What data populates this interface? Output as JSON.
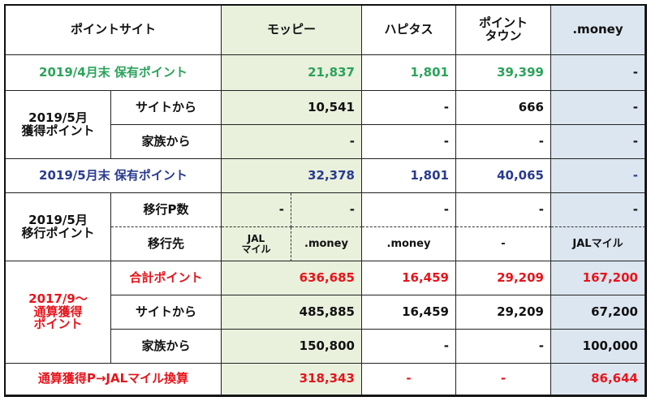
{
  "header": {
    "site": "ポイントサイト",
    "moppy": "モッピー",
    "hapitas": "ハピタス",
    "pointtown": "ポイント\nタウン",
    "money": ".money"
  },
  "apr": {
    "label": "2019/4月末 保有ポイント",
    "moppy": "21,837",
    "hapitas": "1,801",
    "pointtown": "39,399",
    "money": "-"
  },
  "may_earned": {
    "label": "2019/5月\n獲得ポイント",
    "site_label": "サイトから",
    "site_moppy": "10,541",
    "site_hapitas": "-",
    "site_pointtown": "666",
    "site_money": "-",
    "family_label": "家族から",
    "family_moppy": "-",
    "family_hapitas": "-",
    "family_pointtown": "-",
    "family_money": "-"
  },
  "may_end": {
    "label": "2019/5月末 保有ポイント",
    "moppy": "32,378",
    "hapitas": "1,801",
    "pointtown": "40,065",
    "money": "-"
  },
  "may_transfer": {
    "label": "2019/5月\n移行ポイント",
    "count_label": "移行P数",
    "count_moppy_a": "-",
    "count_moppy_b": "-",
    "count_hapitas": "-",
    "count_pointtown": "-",
    "count_money": "-",
    "dest_label": "移行先",
    "dest_moppy_a": "JAL\nマイル",
    "dest_moppy_b": ".money",
    "dest_hapitas": ".money",
    "dest_pointtown": "-",
    "dest_money": "JALマイル"
  },
  "cumulative": {
    "label": "2017/9～\n通算獲得\nポイント",
    "total_label": "合計ポイント",
    "total_moppy": "636,685",
    "total_hapitas": "16,459",
    "total_pointtown": "29,209",
    "total_money": "167,200",
    "site_label": "サイトから",
    "site_moppy": "485,885",
    "site_hapitas": "16,459",
    "site_pointtown": "29,209",
    "site_money": "67,200",
    "family_label": "家族から",
    "family_moppy": "150,800",
    "family_hapitas": "-",
    "family_pointtown": "-",
    "family_money": "100,000"
  },
  "jal": {
    "label": "通算獲得P→JALマイル換算",
    "moppy": "318,343",
    "hapitas": "-",
    "pointtown": "-",
    "money": "86,644"
  },
  "colors": {
    "green_text": "#2ba35a",
    "navy_text": "#2a3b8f",
    "red_text": "#e8141b",
    "green_bg": "#e9f0dc",
    "blue_bg": "#dce6f0"
  }
}
